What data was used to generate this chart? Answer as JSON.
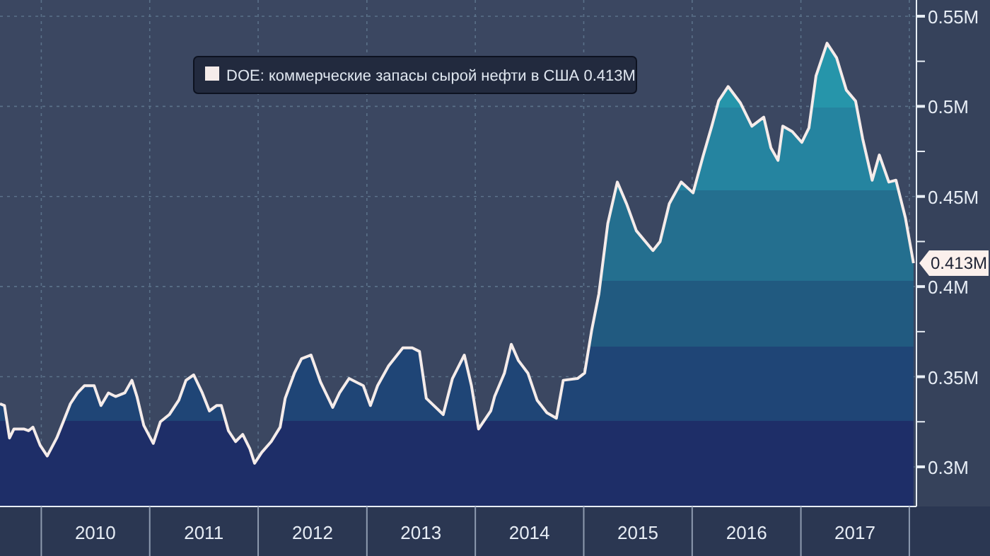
{
  "chart_data": {
    "type": "area",
    "x": [
      "2009-08-15",
      "2009-08-30",
      "2009-09-16",
      "2009-10-01",
      "2009-11-03",
      "2009-11-19",
      "2009-12-04",
      "2009-12-28",
      "2010-01-21",
      "2010-02-22",
      "2010-03-16",
      "2010-04-09",
      "2010-05-03",
      "2010-05-26",
      "2010-06-28",
      "2010-07-21",
      "2010-08-15",
      "2010-09-08",
      "2010-10-09",
      "2010-11-02",
      "2010-11-19",
      "2010-12-12",
      "2011-01-13",
      "2011-02-06",
      "2011-03-08",
      "2011-04-09",
      "2011-05-03",
      "2011-05-29",
      "2011-06-27",
      "2011-07-21",
      "2011-08-14",
      "2011-08-30",
      "2011-09-23",
      "2011-10-17",
      "2011-11-10",
      "2011-12-04",
      "2011-12-20",
      "2012-01-13",
      "2012-02-14",
      "2012-03-15",
      "2012-04-01",
      "2012-05-02",
      "2012-05-26",
      "2012-06-27",
      "2012-07-29",
      "2012-09-08",
      "2012-10-01",
      "2012-11-02",
      "2012-12-20",
      "2013-01-13",
      "2013-02-06",
      "2013-03-15",
      "2013-05-02",
      "2013-06-03",
      "2013-06-27",
      "2013-07-20",
      "2013-09-15",
      "2013-10-16",
      "2013-11-25",
      "2013-12-19",
      "2014-01-12",
      "2014-02-22",
      "2014-03-07",
      "2014-04-09",
      "2014-05-02",
      "2014-05-26",
      "2014-06-27",
      "2014-07-28",
      "2014-08-30",
      "2014-10-01",
      "2014-10-24",
      "2014-12-11",
      "2015-01-04",
      "2015-01-28",
      "2015-02-21",
      "2015-03-23",
      "2015-04-24",
      "2015-05-25",
      "2015-06-27",
      "2015-08-22",
      "2015-09-15",
      "2015-10-16",
      "2015-11-25",
      "2016-01-04",
      "2016-02-06",
      "2016-03-07",
      "2016-03-30",
      "2016-05-01",
      "2016-06-11",
      "2016-07-20",
      "2016-08-29",
      "2016-09-22",
      "2016-10-16",
      "2016-11-01",
      "2016-12-03",
      "2017-01-04",
      "2017-01-28",
      "2017-02-21",
      "2017-03-30",
      "2017-05-01",
      "2017-06-03",
      "2017-07-04",
      "2017-07-28",
      "2017-08-29",
      "2017-09-22",
      "2017-10-24",
      "2017-11-17",
      "2017-12-19",
      "2018-01-15"
    ],
    "series": [
      {
        "name": "DOE: коммерческие запасы сырой нефти в США",
        "color": "#f5ecea",
        "values": [
          0.335,
          0.334,
          0.316,
          0.321,
          0.321,
          0.32,
          0.322,
          0.312,
          0.306,
          0.316,
          0.325,
          0.335,
          0.341,
          0.345,
          0.345,
          0.334,
          0.341,
          0.339,
          0.341,
          0.348,
          0.339,
          0.323,
          0.313,
          0.325,
          0.329,
          0.337,
          0.348,
          0.351,
          0.341,
          0.331,
          0.334,
          0.334,
          0.32,
          0.314,
          0.318,
          0.31,
          0.302,
          0.308,
          0.314,
          0.322,
          0.338,
          0.352,
          0.36,
          0.362,
          0.347,
          0.333,
          0.341,
          0.349,
          0.345,
          0.334,
          0.345,
          0.356,
          0.366,
          0.366,
          0.364,
          0.338,
          0.329,
          0.349,
          0.362,
          0.345,
          0.321,
          0.331,
          0.339,
          0.352,
          0.368,
          0.359,
          0.352,
          0.337,
          0.33,
          0.327,
          0.348,
          0.349,
          0.352,
          0.376,
          0.396,
          0.435,
          0.458,
          0.446,
          0.431,
          0.42,
          0.425,
          0.446,
          0.458,
          0.452,
          0.472,
          0.489,
          0.503,
          0.511,
          0.502,
          0.489,
          0.494,
          0.477,
          0.47,
          0.489,
          0.486,
          0.48,
          0.488,
          0.517,
          0.535,
          0.527,
          0.509,
          0.503,
          0.482,
          0.459,
          0.473,
          0.458,
          0.459,
          0.438,
          0.413
        ]
      }
    ],
    "xlim": [
      "2009-08-15",
      "2018-01-25"
    ],
    "xticks": [
      {
        "value": "2010-01-01",
        "label": null
      },
      {
        "value": "2010-07-02",
        "label": "2010"
      },
      {
        "value": "2011-01-01",
        "label": null
      },
      {
        "value": "2011-07-02",
        "label": "2011"
      },
      {
        "value": "2012-01-01",
        "label": null
      },
      {
        "value": "2012-07-02",
        "label": "2012"
      },
      {
        "value": "2013-01-01",
        "label": null
      },
      {
        "value": "2013-07-02",
        "label": "2013"
      },
      {
        "value": "2014-01-01",
        "label": null
      },
      {
        "value": "2014-07-02",
        "label": "2014"
      },
      {
        "value": "2015-01-01",
        "label": null
      },
      {
        "value": "2015-07-02",
        "label": "2015"
      },
      {
        "value": "2016-01-01",
        "label": null
      },
      {
        "value": "2016-07-02",
        "label": "2016"
      },
      {
        "value": "2017-01-01",
        "label": null
      },
      {
        "value": "2017-07-02",
        "label": "2017"
      },
      {
        "value": "2018-01-01",
        "label": null
      }
    ],
    "ylim": [
      0.278,
      0.559
    ],
    "yticks": [
      {
        "value": 0.3,
        "label": "0.3M"
      },
      {
        "value": 0.325,
        "label": null
      },
      {
        "value": 0.35,
        "label": "0.35M"
      },
      {
        "value": 0.375,
        "label": null
      },
      {
        "value": 0.4,
        "label": "0.4M"
      },
      {
        "value": 0.425,
        "label": null
      },
      {
        "value": 0.45,
        "label": "0.45M"
      },
      {
        "value": 0.475,
        "label": null
      },
      {
        "value": 0.5,
        "label": "0.5M"
      },
      {
        "value": 0.525,
        "label": null
      },
      {
        "value": 0.55,
        "label": "0.55M"
      }
    ],
    "annotations": [
      {
        "text": "0.413M",
        "x": "2018-01-15",
        "y": 0.413
      }
    ],
    "grid": true,
    "legend": "top"
  }
}
